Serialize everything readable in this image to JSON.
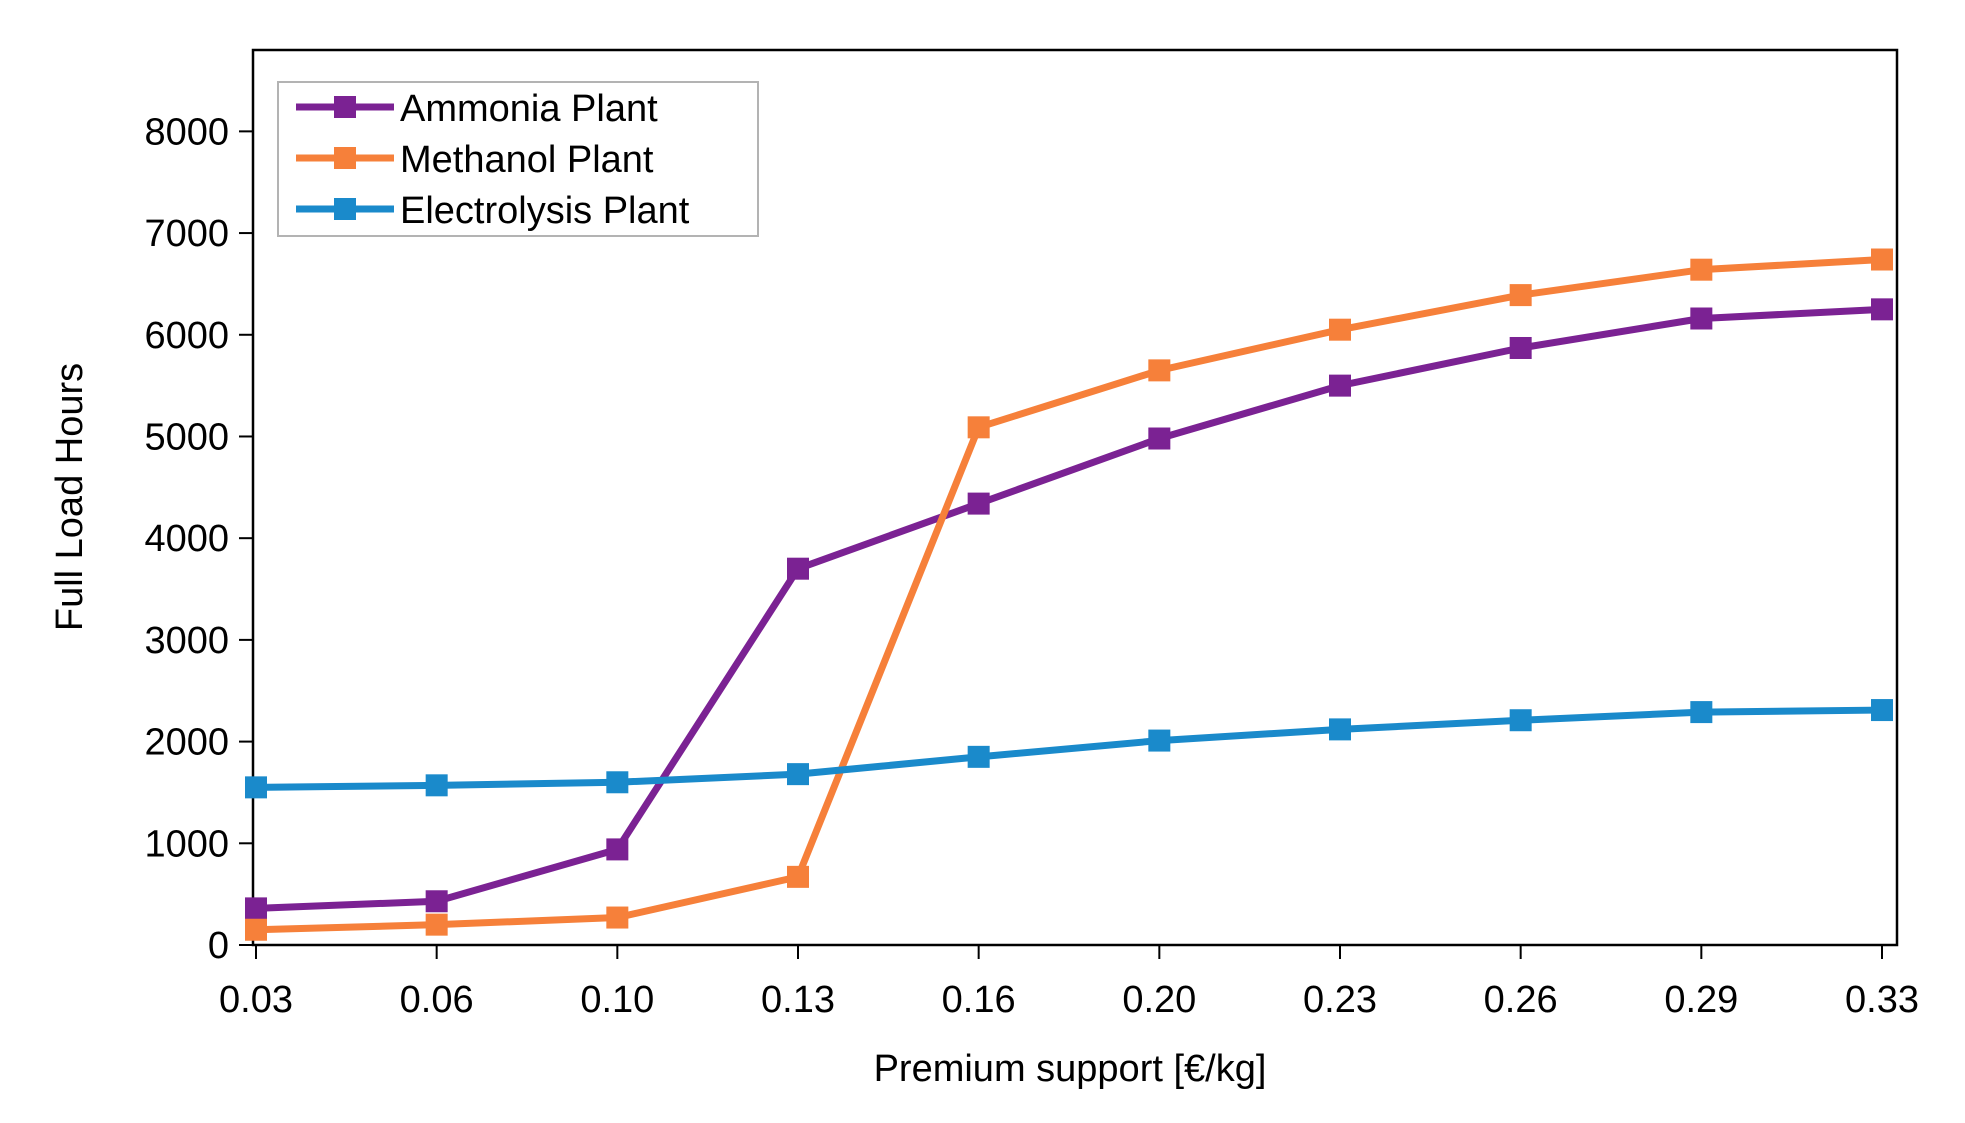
{
  "chart_data": {
    "type": "line",
    "title": "",
    "xlabel": "Premium support [€/kg]",
    "ylabel": "Full Load Hours",
    "ylim": [
      0,
      8800
    ],
    "y_ticks": [
      "0",
      "1000",
      "2000",
      "3000",
      "4000",
      "5000",
      "6000",
      "7000",
      "8000"
    ],
    "x_tick_labels": [
      "0.03",
      "0.06",
      "0.10",
      "0.13",
      "0.16",
      "0.20",
      "0.23",
      "0.26",
      "0.29",
      "0.33"
    ],
    "x_range_index": [
      0,
      9
    ],
    "x_points_index": [
      0,
      1,
      2,
      3,
      4,
      5,
      6,
      7,
      8,
      9
    ],
    "grid": false,
    "legend_position": "top-left",
    "series": [
      {
        "name": "Ammonia Plant",
        "color": "#7B2293",
        "values": [
          360,
          430,
          940,
          3700,
          4340,
          4980,
          5500,
          5870,
          6160,
          6250
        ]
      },
      {
        "name": "Methanol Plant",
        "color": "#F6803A",
        "values": [
          150,
          200,
          270,
          670,
          5090,
          5650,
          6050,
          6390,
          6640,
          6740
        ]
      },
      {
        "name": "Electrolysis Plant",
        "color": "#1A8ACB",
        "values": [
          1550,
          1570,
          1600,
          1680,
          1850,
          2010,
          2120,
          2210,
          2290,
          2310
        ]
      }
    ]
  }
}
